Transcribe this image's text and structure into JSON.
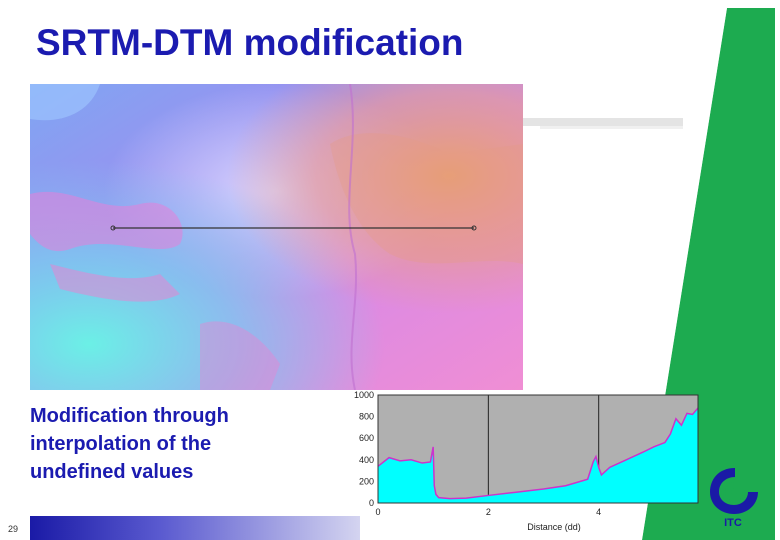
{
  "slide": {
    "title": "SRTM-DTM modification",
    "caption_lines": [
      "Modification through",
      "interpolation of the",
      "undefined values"
    ],
    "page_number": "29"
  },
  "colors": {
    "title": "#1b1bb0",
    "profile_fill": "#00ffff",
    "profile_background": "#b0b0b0",
    "profile_line": "#cc33cc"
  },
  "chart_data": {
    "type": "area",
    "xlabel": "Distance (dd)",
    "ylabel": "",
    "xlim": [
      0,
      5.8
    ],
    "ylim": [
      0,
      1000
    ],
    "x_ticks": [
      "0",
      "2",
      "4"
    ],
    "y_ticks": [
      "0",
      "200",
      "400",
      "600",
      "800",
      "1000"
    ],
    "grid": true,
    "series": [
      {
        "x": [
          0,
          0.2,
          0.4,
          0.6,
          0.8,
          0.95,
          1.0,
          1.02,
          1.05,
          1.1,
          1.3,
          1.6,
          2.0,
          2.5,
          3.0,
          3.4,
          3.8,
          3.9,
          3.95,
          4.0,
          4.05,
          4.2,
          4.5,
          4.8,
          5.0,
          5.2,
          5.3,
          5.4,
          5.5,
          5.6,
          5.7,
          5.8
        ],
        "y": [
          340,
          420,
          390,
          400,
          370,
          380,
          520,
          160,
          80,
          50,
          40,
          45,
          70,
          100,
          130,
          160,
          220,
          380,
          430,
          330,
          260,
          330,
          400,
          470,
          520,
          560,
          640,
          780,
          720,
          830,
          820,
          880
        ]
      }
    ]
  },
  "logo": {
    "text": "ITC"
  }
}
